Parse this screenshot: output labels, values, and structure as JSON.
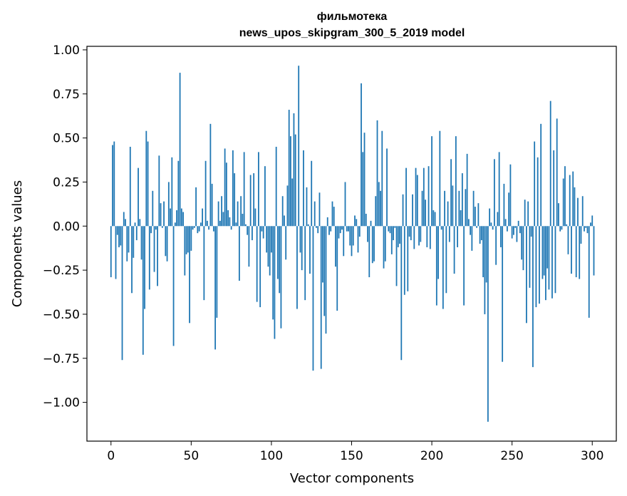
{
  "chart_data": {
    "type": "bar",
    "title_lines": [
      "фильмотека",
      "news_upos_skipgram_300_5_2019 model"
    ],
    "xlabel": "Vector components",
    "ylabel": "Components values",
    "xlim": [
      -15,
      315
    ],
    "ylim": [
      -1.22,
      1.02
    ],
    "xticks": [
      0,
      50,
      100,
      150,
      200,
      250,
      300
    ],
    "yticks": [
      -1.0,
      -0.75,
      -0.5,
      -0.25,
      0.0,
      0.25,
      0.5,
      0.75,
      1.0
    ],
    "ytick_labels": [
      "−1.00",
      "−0.75",
      "−0.50",
      "−0.25",
      "0.00",
      "0.25",
      "0.50",
      "0.75",
      "1.00"
    ],
    "grid": false,
    "bar_color": "#1f77b4",
    "x_start": 0,
    "values": [
      -0.29,
      0.46,
      0.48,
      -0.3,
      -0.05,
      -0.12,
      -0.11,
      -0.76,
      0.08,
      0.04,
      -0.2,
      -0.15,
      0.45,
      -0.38,
      -0.18,
      0.02,
      -0.08,
      0.33,
      0.04,
      -0.19,
      -0.73,
      -0.47,
      0.54,
      0.48,
      -0.36,
      -0.04,
      0.2,
      -0.26,
      -0.02,
      -0.34,
      0.4,
      0.13,
      -0.01,
      0.14,
      -0.17,
      -0.2,
      0.25,
      0.1,
      0.39,
      -0.68,
      0.02,
      0.09,
      0.37,
      0.87,
      0.1,
      0.08,
      -0.28,
      -0.16,
      -0.15,
      -0.55,
      -0.14,
      -0.02,
      -0.01,
      0.22,
      -0.04,
      -0.03,
      0.02,
      0.1,
      -0.42,
      0.37,
      0.03,
      -0.02,
      0.58,
      0.24,
      -0.03,
      -0.7,
      -0.52,
      0.14,
      0.03,
      0.17,
      0.08,
      0.44,
      0.36,
      0.09,
      0.05,
      -0.02,
      0.43,
      0.3,
      0.02,
      0.14,
      -0.31,
      0.17,
      0.07,
      0.42,
      0.01,
      -0.05,
      -0.23,
      0.29,
      -0.08,
      0.3,
      0.1,
      -0.43,
      0.42,
      -0.46,
      -0.03,
      -0.07,
      0.34,
      -0.15,
      -0.23,
      -0.28,
      -0.15,
      -0.53,
      -0.64,
      0.45,
      -0.3,
      -0.38,
      -0.58,
      0.17,
      0.06,
      -0.19,
      0.23,
      0.66,
      0.51,
      0.27,
      0.64,
      0.52,
      -0.47,
      0.91,
      -0.15,
      -0.25,
      0.43,
      -0.42,
      0.22,
      0.01,
      -0.27,
      0.37,
      -0.82,
      0.14,
      -0.01,
      -0.04,
      0.19,
      -0.81,
      -0.32,
      -0.51,
      -0.61,
      0.05,
      -0.05,
      -0.03,
      0.14,
      0.11,
      -0.23,
      -0.48,
      -0.07,
      -0.04,
      -0.02,
      -0.17,
      0.25,
      -0.03,
      -0.03,
      -0.11,
      -0.17,
      -0.11,
      0.06,
      0.04,
      -0.15,
      -0.06,
      0.81,
      0.42,
      0.53,
      0.07,
      -0.09,
      -0.29,
      0.03,
      -0.21,
      -0.2,
      0.17,
      0.6,
      0.25,
      0.2,
      0.54,
      -0.24,
      -0.2,
      0.44,
      -0.03,
      -0.04,
      -0.16,
      -0.08,
      -0.01,
      -0.34,
      -0.12,
      -0.1,
      -0.76,
      0.18,
      -0.39,
      0.33,
      -0.37,
      -0.06,
      -0.08,
      0.18,
      -0.13,
      0.33,
      0.29,
      -0.11,
      -0.09,
      0.2,
      0.33,
      0.15,
      -0.12,
      0.34,
      -0.13,
      0.51,
      0.09,
      0.08,
      -0.45,
      -0.3,
      0.54,
      -0.02,
      -0.47,
      0.2,
      -0.38,
      0.14,
      -0.09,
      0.38,
      0.23,
      -0.27,
      0.51,
      -0.12,
      0.2,
      0.09,
      0.3,
      -0.45,
      0.21,
      0.41,
      0.04,
      -0.05,
      -0.14,
      0.2,
      0.11,
      -0.01,
      0.13,
      -0.1,
      -0.08,
      -0.29,
      -0.5,
      -0.32,
      -1.11,
      0.1,
      0.02,
      -0.02,
      0.38,
      -0.22,
      0.08,
      0.42,
      -0.12,
      -0.77,
      0.24,
      0.04,
      -0.03,
      0.19,
      0.35,
      -0.07,
      -0.05,
      -0.01,
      -0.09,
      0.03,
      -0.04,
      -0.19,
      -0.25,
      0.15,
      -0.55,
      0.14,
      -0.35,
      -0.06,
      -0.8,
      0.48,
      -0.46,
      0.39,
      -0.44,
      0.58,
      -0.3,
      -0.28,
      -0.42,
      -0.24,
      -0.36,
      0.71,
      -0.41,
      0.43,
      -0.38,
      0.61,
      0.13,
      -0.03,
      -0.02,
      0.27,
      0.34,
      0.01,
      -0.16,
      0.29,
      -0.27,
      0.31,
      0.22,
      -0.29,
      0.16,
      -0.3,
      -0.1,
      0.17,
      -0.03,
      -0.01,
      -0.04,
      -0.52,
      0.02,
      0.06,
      -0.28
    ]
  }
}
